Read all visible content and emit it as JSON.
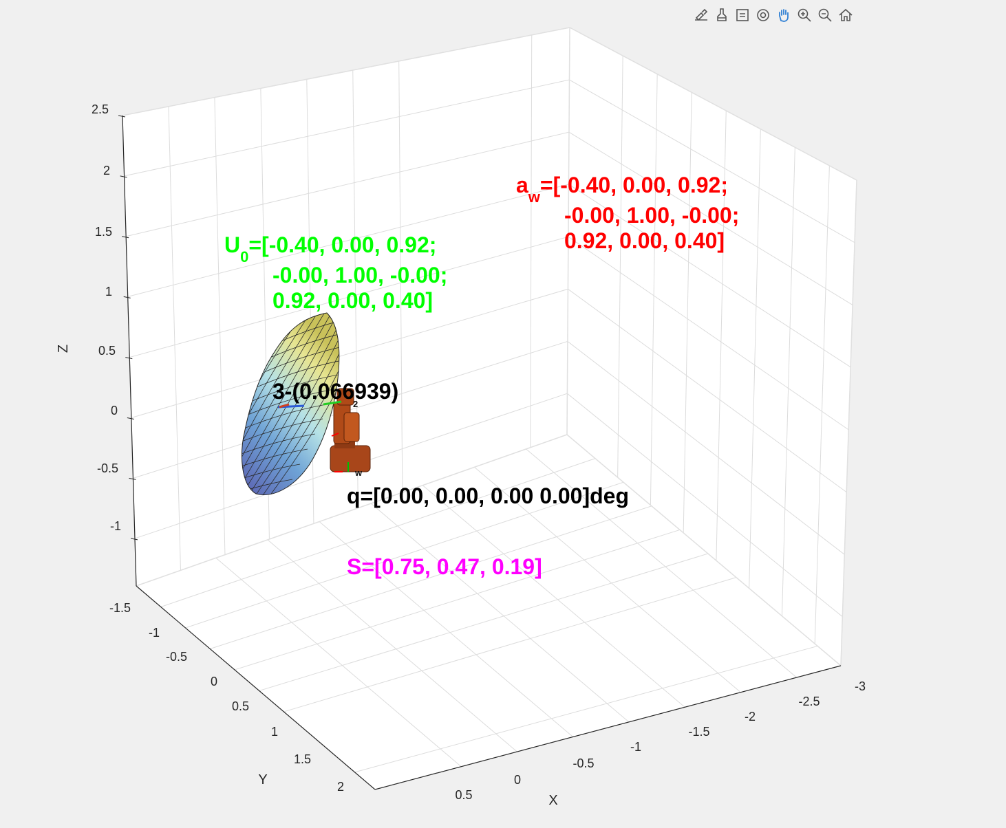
{
  "toolbar": {
    "items": [
      {
        "name": "edit-plot-icon"
      },
      {
        "name": "brush-icon"
      },
      {
        "name": "data-tips-icon"
      },
      {
        "name": "rotate-3d-icon"
      },
      {
        "name": "pan-hand-icon"
      },
      {
        "name": "zoom-in-icon"
      },
      {
        "name": "zoom-out-icon"
      },
      {
        "name": "home-icon"
      }
    ]
  },
  "axes": {
    "z_label": "Z",
    "y_label": "Y",
    "x_label": "X",
    "z_ticks": [
      "2.5",
      "2",
      "1.5",
      "1",
      "0.5",
      "0",
      "-0.5",
      "-1"
    ],
    "y_ticks": [
      "-1.5",
      "-1",
      "-0.5",
      "0",
      "0.5",
      "1",
      "1.5",
      "2"
    ],
    "x_ticks": [
      "0.5",
      "0",
      "-0.5",
      "-1",
      "-1.5",
      "-2",
      "-2.5",
      "-3"
    ],
    "grid": true
  },
  "annotations": {
    "aw_symbol": "a",
    "aw_sub": "w",
    "aw_line1": "=[-0.40, 0.00, 0.92;",
    "aw_line2": "-0.00, 1.00, -0.00;",
    "aw_line3": "0.92, 0.00, 0.40]",
    "u0_symbol": "U",
    "u0_sub": "0",
    "u0_line1": "=[-0.40, 0.00, 0.92;",
    "u0_line2": "-0.00, 1.00, -0.00;",
    "u0_line3": "0.92, 0.00, 0.40]",
    "cond": "3-(0.066939)",
    "q": "q=[0.00, 0.00, 0.00 0.00]deg",
    "s": "S=[0.75, 0.47, 0.19]",
    "frame_label_2": "2",
    "frame_label_w": "w"
  },
  "colors": {
    "aw": "#ff0000",
    "u0": "#00ff00",
    "q": "#000000",
    "s": "#ff00ff",
    "robot": "#b04a18",
    "grid": "#dcdcdc",
    "axes": "#262626"
  }
}
